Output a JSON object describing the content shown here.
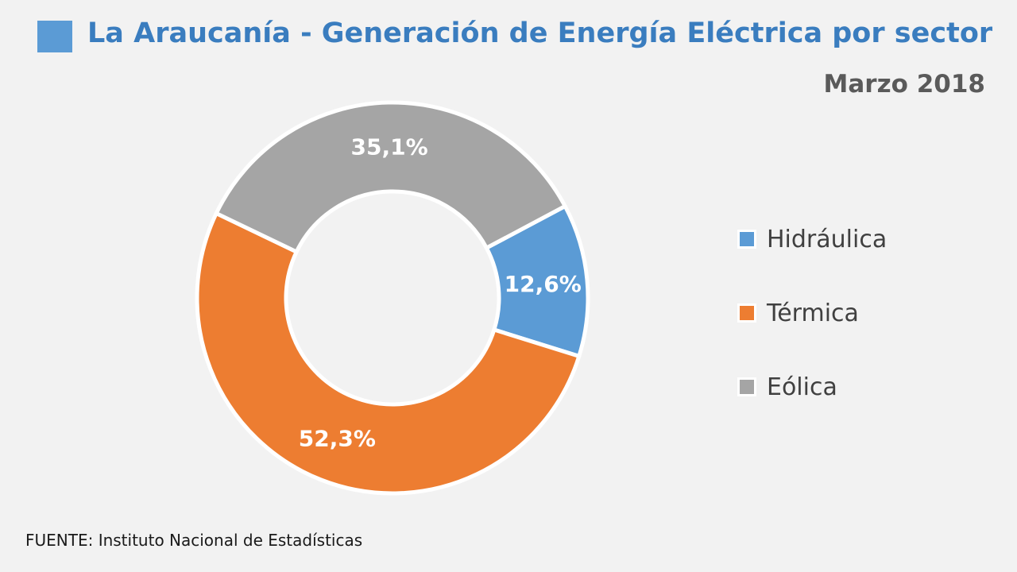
{
  "title": "La Araucanía - Generación de Energía Eléctrica  por sector",
  "subtitle": "Marzo  2018",
  "source": "FUENTE: Instituto Nacional de Estadísticas",
  "colors": {
    "title": "#3a7dbf",
    "marker": "#5b9bd5"
  },
  "chart_data": {
    "type": "pie",
    "variant": "donut",
    "categories": [
      "Hidráulica",
      "Térmica",
      "Eólica"
    ],
    "values": [
      12.6,
      52.3,
      35.1
    ],
    "labels": [
      "12,6%",
      "52,3%",
      "35,1%"
    ],
    "colors": [
      "#5b9bd5",
      "#ed7d31",
      "#a5a5a5"
    ],
    "legend_position": "right"
  }
}
